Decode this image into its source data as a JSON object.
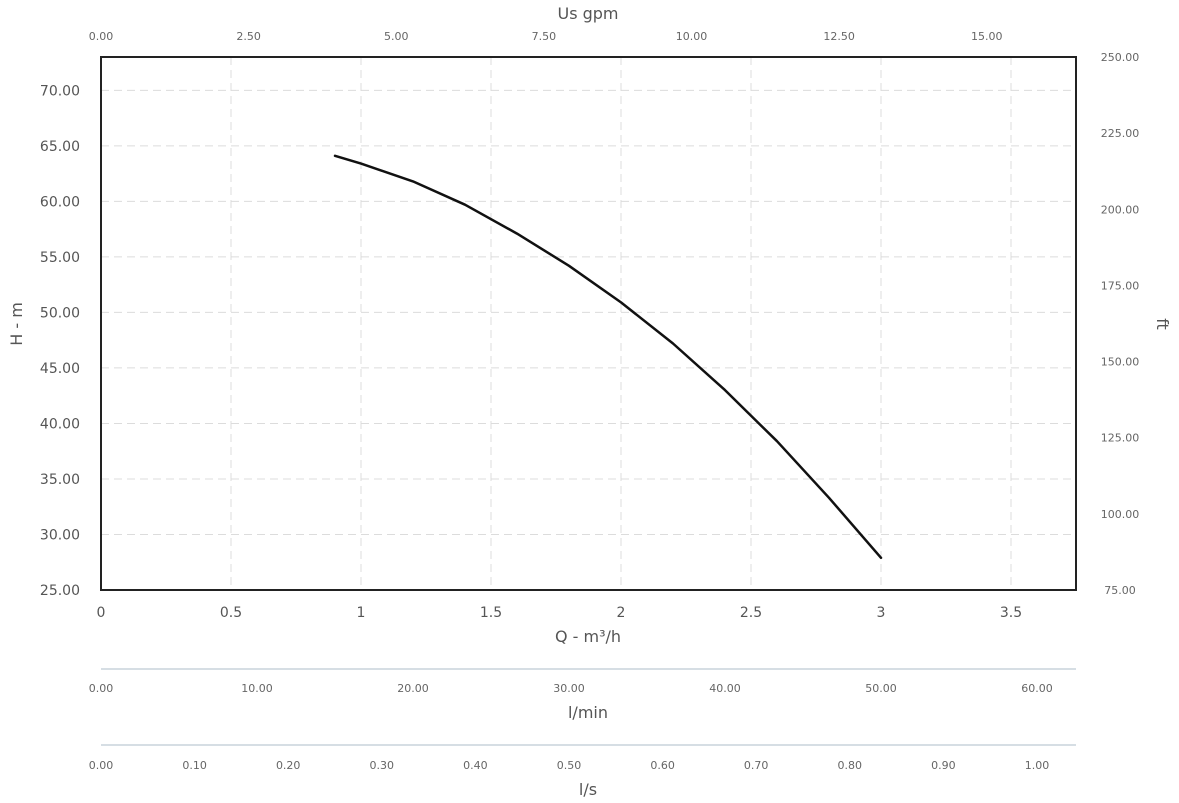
{
  "chart_data": {
    "type": "line",
    "xlabel": "Q - m³/h",
    "ylabel": "H - m",
    "xlim": [
      0,
      3.75
    ],
    "ylim": [
      25,
      73
    ],
    "x_ticks": [
      "0",
      "0.5",
      "1",
      "1.5",
      "2",
      "2.5",
      "3",
      "3.5"
    ],
    "y_ticks": [
      "25.00",
      "30.00",
      "35.00",
      "40.00",
      "45.00",
      "50.00",
      "55.00",
      "60.00",
      "65.00",
      "70.00"
    ],
    "series": [
      {
        "x": [
          0.9,
          1.0,
          1.2,
          1.4,
          1.6,
          1.8,
          2.0,
          2.2,
          2.4,
          2.6,
          2.8,
          3.0
        ],
        "y": [
          64.1,
          63.4,
          61.8,
          59.7,
          57.1,
          54.2,
          50.9,
          47.2,
          43.0,
          38.4,
          33.3,
          27.9
        ],
        "color": "#111111"
      }
    ],
    "secondary_axes": [
      {
        "label": "Us gpm",
        "position": "top",
        "ticks": [
          "0.00",
          "2.50",
          "5.00",
          "7.50",
          "10.00",
          "12.50",
          "15.00"
        ],
        "values": [
          0,
          2.5,
          5,
          7.5,
          10,
          12.5,
          15
        ],
        "range": [
          0,
          16.511
        ]
      },
      {
        "label": "ft",
        "position": "right",
        "ticks": [
          "75.00",
          "100.00",
          "125.00",
          "150.00",
          "175.00",
          "200.00",
          "225.00",
          "250.00"
        ],
        "values": [
          75,
          100,
          125,
          150,
          175,
          200,
          225,
          250
        ],
        "range": [
          75,
          250
        ]
      },
      {
        "label": "l/min",
        "position": "bottom-1",
        "ticks": [
          "0.00",
          "10.00",
          "20.00",
          "30.00",
          "40.00",
          "50.00",
          "60.00"
        ],
        "values": [
          0,
          10,
          20,
          30,
          40,
          50,
          60
        ],
        "range": [
          0,
          62.5
        ]
      },
      {
        "label": "l/s",
        "position": "bottom-2",
        "ticks": [
          "0.00",
          "0.10",
          "0.20",
          "0.30",
          "0.40",
          "0.50",
          "0.60",
          "0.70",
          "0.80",
          "0.90",
          "1.00"
        ],
        "values": [
          0,
          0.1,
          0.2,
          0.3,
          0.4,
          0.5,
          0.6,
          0.7,
          0.8,
          0.9,
          1.0
        ],
        "range": [
          0,
          1.0417
        ]
      }
    ],
    "grid": true
  }
}
